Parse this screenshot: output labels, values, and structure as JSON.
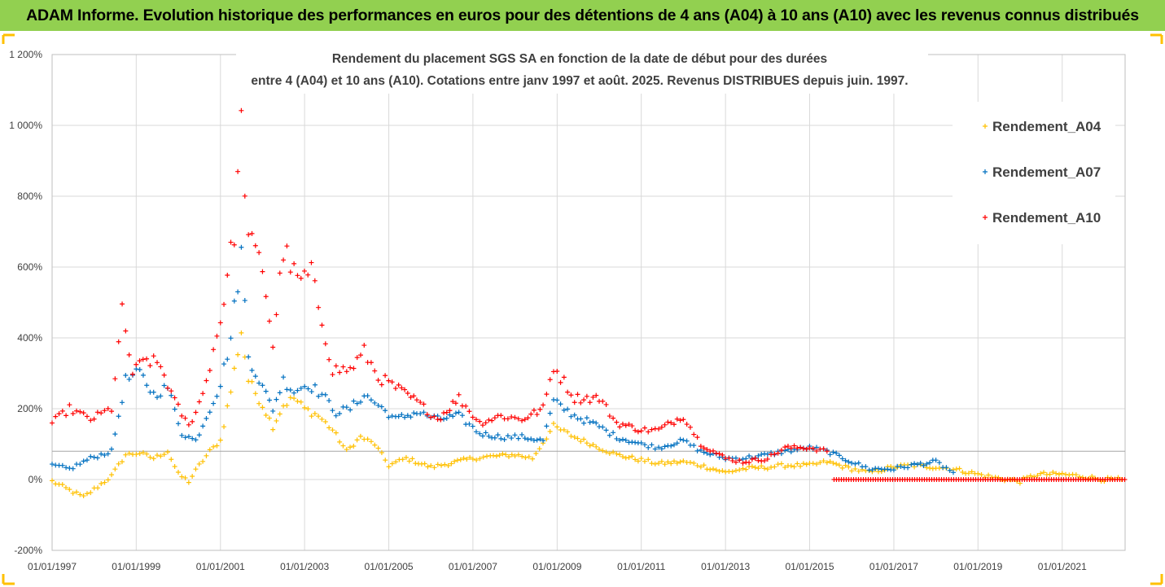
{
  "header": {
    "banner_title": "ADAM Informe. Evolution historique des performances en euros pour des détentions de 4 ans (A04) à 10 ans (A10) avec les revenus connus distribués"
  },
  "colors": {
    "banner_bg": "#92d050",
    "frame_accent": "#ffc000",
    "gridline": "#d9d9d9"
  },
  "chart_data": {
    "type": "scatter",
    "title_line1": "Rendement du placement SGS SA en fonction de la date de début pour des durées",
    "title_line2": "entre 4 (A04) et 10 ans (A10). Cotations entre janv 1997 et août. 2025. Revenus DISTRIBUES depuis juin. 1997.",
    "marker": "+",
    "ylim": [
      -200,
      1200
    ],
    "yticks": [
      -200,
      0,
      200,
      400,
      600,
      800,
      1000,
      1200
    ],
    "ytick_labels": [
      "-200%",
      "0%",
      "200%",
      "400%",
      "600%",
      "800%",
      "1 000%",
      "1 200%"
    ],
    "xlim": [
      "1997-01-01",
      "2022-07-01"
    ],
    "xtick_labels": [
      "01/01/1997",
      "01/01/1999",
      "01/01/2001",
      "01/01/2003",
      "01/01/2005",
      "01/01/2007",
      "01/01/2009",
      "01/01/2011",
      "01/01/2013",
      "01/01/2015",
      "01/01/2017",
      "01/01/2019",
      "01/01/2021"
    ],
    "xtick_dates": [
      "1997-01-01",
      "1999-01-01",
      "2001-01-01",
      "2003-01-01",
      "2005-01-01",
      "2007-01-01",
      "2009-01-01",
      "2011-01-01",
      "2013-01-01",
      "2015-01-01",
      "2017-01-01",
      "2019-01-01",
      "2021-01-01"
    ],
    "grid": true,
    "reference_line_y": 80,
    "legend_position": "right",
    "series": [
      {
        "name": "Rendement_A04",
        "color": "#ffc000",
        "points": [
          [
            "1997-01-01",
            -5
          ],
          [
            "1997-05-01",
            -25
          ],
          [
            "1997-10-01",
            -50
          ],
          [
            "1998-02-01",
            -20
          ],
          [
            "1998-06-01",
            10
          ],
          [
            "1998-10-01",
            70
          ],
          [
            "1999-02-01",
            75
          ],
          [
            "1999-06-01",
            60
          ],
          [
            "1999-10-01",
            80
          ],
          [
            "2000-01-01",
            15
          ],
          [
            "2000-04-01",
            -5
          ],
          [
            "2000-07-01",
            40
          ],
          [
            "2000-10-01",
            80
          ],
          [
            "2001-01-01",
            110
          ],
          [
            "2001-04-01",
            250
          ],
          [
            "2001-07-01",
            420
          ],
          [
            "2001-09-01",
            280
          ],
          [
            "2002-01-01",
            210
          ],
          [
            "2002-04-01",
            150
          ],
          [
            "2002-07-01",
            210
          ],
          [
            "2002-10-01",
            230
          ],
          [
            "2003-01-01",
            200
          ],
          [
            "2003-05-01",
            180
          ],
          [
            "2003-09-01",
            140
          ],
          [
            "2004-01-01",
            80
          ],
          [
            "2004-05-01",
            120
          ],
          [
            "2004-09-01",
            100
          ],
          [
            "2005-01-01",
            40
          ],
          [
            "2005-06-01",
            60
          ],
          [
            "2006-01-01",
            35
          ],
          [
            "2006-06-01",
            45
          ],
          [
            "2007-01-01",
            60
          ],
          [
            "2007-06-01",
            65
          ],
          [
            "2008-01-01",
            70
          ],
          [
            "2008-06-01",
            60
          ],
          [
            "2008-12-01",
            150
          ],
          [
            "2009-06-01",
            120
          ],
          [
            "2010-01-01",
            90
          ],
          [
            "2010-06-01",
            70
          ],
          [
            "2011-01-01",
            55
          ],
          [
            "2011-06-01",
            45
          ],
          [
            "2012-01-01",
            50
          ],
          [
            "2012-06-01",
            40
          ],
          [
            "2013-01-01",
            20
          ],
          [
            "2013-06-01",
            30
          ],
          [
            "2014-01-01",
            35
          ],
          [
            "2014-06-01",
            40
          ],
          [
            "2015-01-01",
            40
          ],
          [
            "2015-06-01",
            50
          ],
          [
            "2016-01-01",
            30
          ],
          [
            "2016-06-01",
            20
          ],
          [
            "2017-01-01",
            35
          ],
          [
            "2017-06-01",
            40
          ],
          [
            "2018-01-01",
            35
          ],
          [
            "2018-06-01",
            30
          ],
          [
            "2019-01-01",
            15
          ],
          [
            "2019-06-01",
            5
          ],
          [
            "2020-01-01",
            -5
          ],
          [
            "2020-06-01",
            15
          ],
          [
            "2021-01-01",
            15
          ],
          [
            "2021-06-01",
            10
          ],
          [
            "2022-01-01",
            0
          ],
          [
            "2022-06-01",
            0
          ]
        ]
      },
      {
        "name": "Rendement_A07",
        "color": "#0070c0",
        "points": [
          [
            "1997-01-01",
            40
          ],
          [
            "1997-06-01",
            30
          ],
          [
            "1997-12-01",
            60
          ],
          [
            "1998-06-01",
            80
          ],
          [
            "1998-10-01",
            280
          ],
          [
            "1999-02-01",
            300
          ],
          [
            "1999-06-01",
            240
          ],
          [
            "1999-10-01",
            260
          ],
          [
            "2000-02-01",
            130
          ],
          [
            "2000-06-01",
            110
          ],
          [
            "2000-10-01",
            200
          ],
          [
            "2001-01-01",
            270
          ],
          [
            "2001-04-01",
            400
          ],
          [
            "2001-07-01",
            640
          ],
          [
            "2001-09-01",
            350
          ],
          [
            "2002-01-01",
            260
          ],
          [
            "2002-04-01",
            200
          ],
          [
            "2002-07-01",
            280
          ],
          [
            "2002-10-01",
            250
          ],
          [
            "2003-02-01",
            270
          ],
          [
            "2003-06-01",
            240
          ],
          [
            "2003-10-01",
            190
          ],
          [
            "2004-02-01",
            200
          ],
          [
            "2004-06-01",
            240
          ],
          [
            "2004-10-01",
            210
          ],
          [
            "2005-03-01",
            170
          ],
          [
            "2005-09-01",
            190
          ],
          [
            "2006-03-01",
            170
          ],
          [
            "2006-09-01",
            180
          ],
          [
            "2007-03-01",
            130
          ],
          [
            "2007-09-01",
            120
          ],
          [
            "2008-03-01",
            120
          ],
          [
            "2008-09-01",
            110
          ],
          [
            "2008-12-01",
            220
          ],
          [
            "2009-06-01",
            180
          ],
          [
            "2010-01-01",
            150
          ],
          [
            "2010-06-01",
            120
          ],
          [
            "2011-01-01",
            100
          ],
          [
            "2011-06-01",
            90
          ],
          [
            "2012-01-01",
            110
          ],
          [
            "2012-06-01",
            80
          ],
          [
            "2013-01-01",
            60
          ],
          [
            "2013-06-01",
            60
          ],
          [
            "2014-01-01",
            70
          ],
          [
            "2014-06-01",
            80
          ],
          [
            "2015-01-01",
            90
          ],
          [
            "2015-06-01",
            80
          ],
          [
            "2016-01-01",
            50
          ],
          [
            "2016-06-01",
            30
          ],
          [
            "2017-01-01",
            30
          ],
          [
            "2017-06-01",
            40
          ],
          [
            "2018-01-01",
            50
          ],
          [
            "2018-06-01",
            20
          ]
        ]
      },
      {
        "name": "Rendement_A10",
        "color": "#ff0000",
        "points": [
          [
            "1997-01-01",
            160
          ],
          [
            "1997-06-01",
            200
          ],
          [
            "1997-12-01",
            170
          ],
          [
            "1998-06-01",
            200
          ],
          [
            "1998-09-01",
            470
          ],
          [
            "1998-12-01",
            300
          ],
          [
            "1999-04-01",
            340
          ],
          [
            "1999-08-01",
            320
          ],
          [
            "1999-12-01",
            220
          ],
          [
            "2000-04-01",
            150
          ],
          [
            "2000-08-01",
            240
          ],
          [
            "2001-01-01",
            450
          ],
          [
            "2001-05-01",
            700
          ],
          [
            "2001-07-01",
            1000
          ],
          [
            "2001-09-01",
            680
          ],
          [
            "2002-01-01",
            600
          ],
          [
            "2002-04-01",
            380
          ],
          [
            "2002-07-01",
            650
          ],
          [
            "2002-11-01",
            560
          ],
          [
            "2003-03-01",
            580
          ],
          [
            "2003-06-01",
            450
          ],
          [
            "2003-09-01",
            310
          ],
          [
            "2004-02-01",
            310
          ],
          [
            "2004-06-01",
            360
          ],
          [
            "2004-10-01",
            290
          ],
          [
            "2005-03-01",
            260
          ],
          [
            "2005-09-01",
            220
          ],
          [
            "2006-03-01",
            170
          ],
          [
            "2006-09-01",
            230
          ],
          [
            "2007-03-01",
            160
          ],
          [
            "2007-09-01",
            180
          ],
          [
            "2008-03-01",
            170
          ],
          [
            "2008-09-01",
            200
          ],
          [
            "2008-12-01",
            320
          ],
          [
            "2009-06-01",
            230
          ],
          [
            "2010-01-01",
            230
          ],
          [
            "2010-06-01",
            160
          ],
          [
            "2011-01-01",
            140
          ],
          [
            "2011-06-01",
            140
          ],
          [
            "2012-01-01",
            180
          ],
          [
            "2012-06-01",
            100
          ],
          [
            "2013-01-01",
            60
          ],
          [
            "2013-06-01",
            50
          ],
          [
            "2014-01-01",
            60
          ],
          [
            "2014-06-01",
            90
          ],
          [
            "2015-01-01",
            90
          ],
          [
            "2015-06-01",
            80
          ]
        ],
        "flat_from": "2015-08-01",
        "flat_value": 0
      }
    ]
  }
}
